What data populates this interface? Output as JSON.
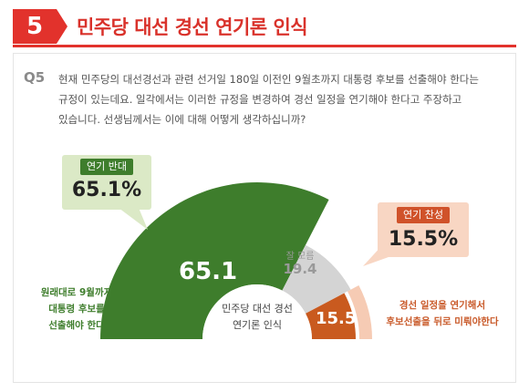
{
  "header": {
    "number": "5",
    "title": "민주당 대선 경선 연기론 인식"
  },
  "question": {
    "label": "Q5",
    "lines": [
      "현재 민주당의 대선경선과 관련 선거일 180일 이전인 9월초까지 대통령 후보를 선출해야 한다는",
      "규정이 있는데요. 일각에서는 이러한 규정을 변경하여 경선 일정을 연기해야 한다고 주장하고",
      "있습니다. 선생님께서는 이에 대해 어떻게 생각하십니까?"
    ]
  },
  "colors": {
    "red": "#e2322c",
    "green": "#3e7d2c",
    "green_light": "#dbe9c6",
    "orange": "#c95a1f",
    "orange_light": "#f8d6c3",
    "gray": "#c8c8c8"
  },
  "chart_data": {
    "type": "pie",
    "center_label": [
      "민주당 대선 경선",
      "연기론 인식"
    ],
    "slices": [
      {
        "name": "원래대로 9월까지 대통령 후보를 선출해야 한다",
        "value": 65.1,
        "color": "#3e7d2c"
      },
      {
        "name": "잘 모름",
        "value": 19.4,
        "color": "#d4d4d4"
      },
      {
        "name": "경선 일정을 연기해서 후보선출을 뒤로 미뤄야한다",
        "value": 15.5,
        "color": "#c95a1f"
      }
    ],
    "labels": {
      "oppose_tag": "연기 반대",
      "oppose_pct": "65.1%",
      "oppose_value": "65.1",
      "support_tag": "연기 찬성",
      "support_pct": "15.5%",
      "support_value": "15.5",
      "nr_label": "잘 모름",
      "nr_value": "19.4"
    },
    "side_left": [
      "원래대로 9월까지",
      "대통령 후보를",
      "선출해야 한다"
    ],
    "side_right": [
      "경선 일정을 연기해서",
      "후보선출을 뒤로 미뤄야한다"
    ]
  }
}
